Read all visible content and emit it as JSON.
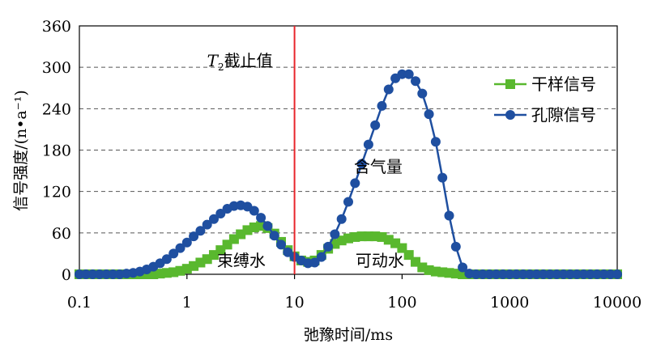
{
  "chart_data": {
    "type": "line",
    "title": "",
    "xlabel": "弛豫时间/ms",
    "ylabel": "信号强度/(n•a⁻¹)",
    "x_scale": "log",
    "xlim": [
      0.1,
      10000
    ],
    "ylim": [
      0,
      360
    ],
    "x_ticks": [
      "0.1",
      "1",
      "10",
      "100",
      "1000",
      "10000"
    ],
    "y_ticks": [
      "0",
      "60",
      "120",
      "180",
      "240",
      "300",
      "360"
    ],
    "grid": "horizontal-dashed",
    "legend_position": "right",
    "cutoff_line": {
      "x": 10,
      "label_T": "T",
      "label_sub": "2",
      "label_rest": "截止值",
      "color": "#e8262b"
    },
    "annotations": [
      {
        "text": "束缚水",
        "x": 3.2,
        "y": 12
      },
      {
        "text": "可动水",
        "x": 62,
        "y": 12
      },
      {
        "text": "含气量",
        "x": 60,
        "y": 148
      }
    ],
    "series": [
      {
        "name": "干样信号",
        "color": "#59b82e",
        "marker": "square",
        "x": [
          0.1,
          0.115,
          0.133,
          0.154,
          0.178,
          0.205,
          0.237,
          0.274,
          0.316,
          0.365,
          0.422,
          0.487,
          0.562,
          0.649,
          0.75,
          0.866,
          1.0,
          1.155,
          1.334,
          1.54,
          1.778,
          2.054,
          2.371,
          2.738,
          3.162,
          3.652,
          4.217,
          4.87,
          5.623,
          6.494,
          7.499,
          8.66,
          10.0,
          11.55,
          13.34,
          15.4,
          17.78,
          20.54,
          23.71,
          27.38,
          31.62,
          36.52,
          42.17,
          48.7,
          56.23,
          64.94,
          74.99,
          86.6,
          100.0,
          115.5,
          133.4,
          154.0,
          177.8,
          205.4,
          237.1,
          273.8,
          316.2,
          365.2,
          421.7,
          487.0,
          562.3,
          649.4,
          749.9,
          866.0,
          1000,
          1155,
          1334,
          1540,
          1778,
          2054,
          2371,
          2738,
          3162,
          3652,
          4217,
          4870,
          5623,
          6494,
          7499,
          8660,
          10000
        ],
        "values": [
          0,
          0,
          0,
          0,
          0,
          0,
          0,
          0,
          0,
          0,
          0,
          0,
          1,
          2,
          3,
          5,
          8,
          12,
          17,
          22,
          28,
          35,
          43,
          51,
          58,
          64,
          68,
          70,
          67,
          59,
          47,
          35,
          26,
          20,
          18,
          20,
          28,
          37,
          44,
          49,
          52,
          54,
          55,
          55,
          55,
          54,
          50,
          45,
          38,
          28,
          18,
          10,
          6,
          4,
          3,
          2,
          1,
          0,
          0,
          0,
          0,
          0,
          0,
          0,
          0,
          0,
          0,
          0,
          0,
          0,
          0,
          0,
          0,
          0,
          0,
          0,
          0,
          0,
          0,
          0,
          0
        ]
      },
      {
        "name": "孔隙信号",
        "color": "#1f4fa0",
        "marker": "circle",
        "x": [
          0.1,
          0.115,
          0.133,
          0.154,
          0.178,
          0.205,
          0.237,
          0.274,
          0.316,
          0.365,
          0.422,
          0.487,
          0.562,
          0.649,
          0.75,
          0.866,
          1.0,
          1.155,
          1.334,
          1.54,
          1.778,
          2.054,
          2.371,
          2.738,
          3.162,
          3.652,
          4.217,
          4.87,
          5.623,
          6.494,
          7.499,
          8.66,
          10.0,
          11.55,
          13.34,
          15.4,
          17.78,
          20.54,
          23.71,
          27.38,
          31.62,
          36.52,
          42.17,
          48.7,
          56.23,
          64.94,
          74.99,
          86.6,
          100.0,
          115.5,
          133.4,
          154.0,
          177.8,
          205.4,
          237.1,
          273.8,
          316.2,
          365.2,
          421.7,
          487.0,
          562.3,
          649.4,
          749.9,
          866.0,
          1000,
          1155,
          1334,
          1540,
          1778,
          2054,
          2371,
          2738,
          3162,
          3652,
          4217,
          4870,
          5623,
          6494,
          7499,
          8660,
          10000
        ],
        "values": [
          0,
          0,
          0,
          0,
          0,
          0,
          0,
          1,
          2,
          4,
          7,
          11,
          16,
          22,
          30,
          38,
          46,
          55,
          63,
          72,
          80,
          88,
          95,
          99,
          100,
          98,
          92,
          82,
          70,
          56,
          43,
          32,
          25,
          20,
          16,
          17,
          25,
          40,
          58,
          80,
          105,
          132,
          160,
          188,
          216,
          244,
          268,
          284,
          290,
          290,
          280,
          262,
          232,
          192,
          140,
          85,
          40,
          10,
          1,
          0,
          0,
          0,
          0,
          0,
          0,
          0,
          0,
          0,
          0,
          0,
          0,
          0,
          0,
          0,
          0,
          0,
          0,
          0,
          0,
          0,
          0
        ]
      }
    ]
  }
}
